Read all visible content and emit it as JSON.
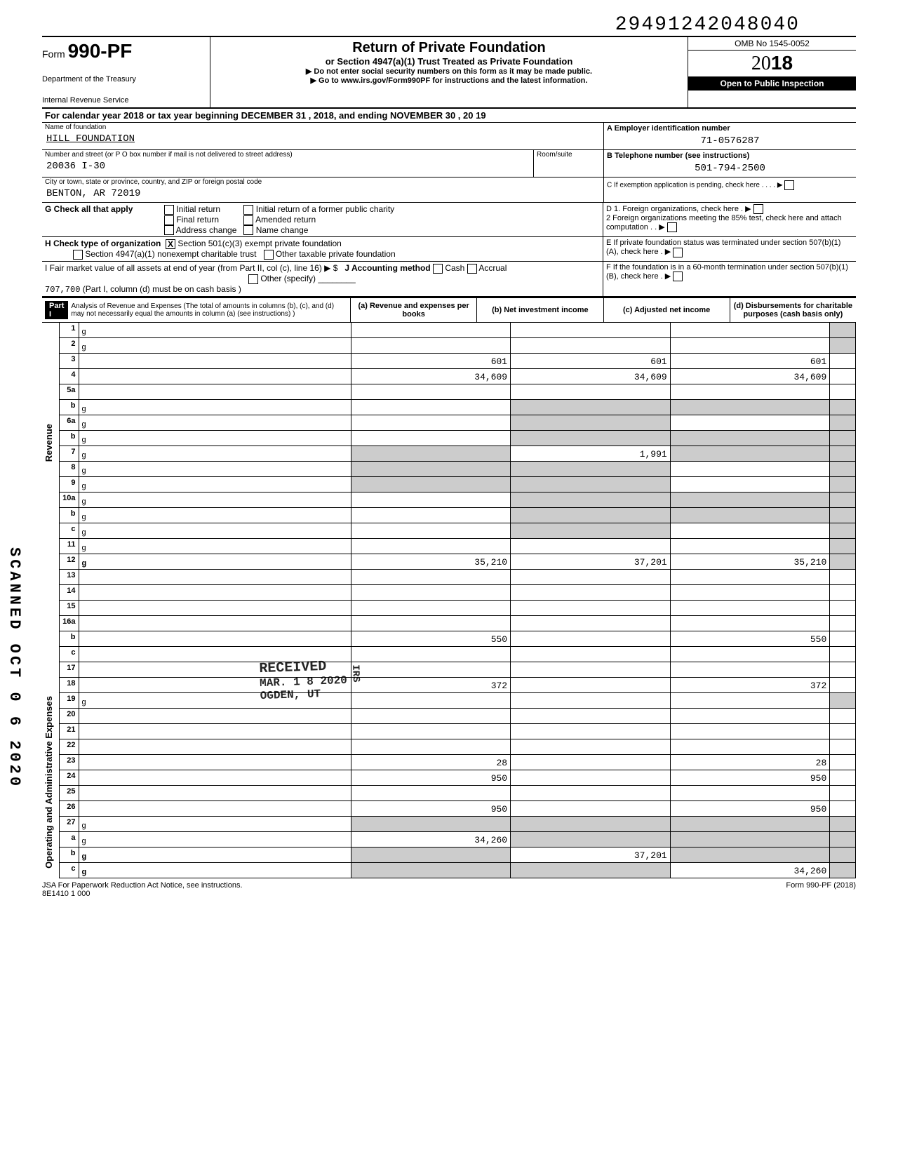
{
  "dln": "29491242048040",
  "form_number_prefix": "Form",
  "form_number": "990-PF",
  "dept1": "Department of the Treasury",
  "dept2": "Internal Revenue Service",
  "title": "Return of Private Foundation",
  "subtitle": "or Section 4947(a)(1) Trust Treated as Private Foundation",
  "warn": "▶ Do not enter social security numbers on this form as it may be made public.",
  "goto": "▶ Go to www.irs.gov/Form990PF for instructions and the latest information.",
  "omb": "OMB No 1545-0052",
  "year_outline": "20",
  "year_bold": "18",
  "inspect": "Open to Public Inspection",
  "cal_line": "For calendar year 2018 or tax year beginning DECEMBER 31          , 2018, and ending   NOVEMBER 30          , 20 19",
  "name_label": "Name of foundation",
  "foundation_name": "HILL FOUNDATION",
  "ein_label": "A  Employer identification number",
  "ein": "71-0576287",
  "street_label": "Number and street (or P O box number if mail is not delivered to street address)",
  "room_label": "Room/suite",
  "street": "20036 I-30",
  "phone_label": "B  Telephone number (see instructions)",
  "phone": "501-794-2500",
  "city_label": "City or town, state or province, country, and ZIP or foreign postal code",
  "city": "BENTON, AR  72019",
  "c_label": "C  If exemption application is pending, check here",
  "g_label": "G  Check all that apply",
  "g_opts": [
    "Initial return",
    "Final return",
    "Address change",
    "Initial return of a former public charity",
    "Amended return",
    "Name change"
  ],
  "d_label": "D  1. Foreign organizations, check here",
  "d2": "2  Foreign organizations meeting the 85% test, check here and attach computation",
  "h_label": "H  Check type of organization",
  "h_x": "X",
  "h_opt1": "Section 501(c)(3) exempt private foundation",
  "h_opt2": "Section 4947(a)(1) nonexempt charitable trust",
  "h_opt3": "Other taxable private foundation",
  "e_label": "E  If private foundation status was terminated under section 507(b)(1)(A), check here",
  "i_label": "I  Fair market value of all assets at end of year (from Part II, col (c), line 16) ▶ $",
  "i_val": "707,700",
  "i_note": "(Part I, column (d) must be on cash basis )",
  "j_label": "J Accounting method",
  "j_opts": [
    "Cash",
    "Accrual",
    "Other (specify)"
  ],
  "f_label": "F  If the foundation is in a 60-month termination under section 507(b)(1)(B), check here",
  "part1_tag": "Part I",
  "part1_title": "Analysis of Revenue and Expenses (The total of amounts in columns (b), (c), and (d) may not necessarily equal the amounts in column (a) (see instructions) )",
  "col_a": "(a) Revenue and expenses per books",
  "col_b": "(b) Net investment income",
  "col_c": "(c) Adjusted net income",
  "col_d": "(d) Disbursements for charitable purposes (cash basis only)",
  "side_rev": "Revenue",
  "side_exp": "Operating and Administrative Expenses",
  "rows": [
    {
      "n": "1",
      "d": "g",
      "a": "",
      "b": "",
      "c": ""
    },
    {
      "n": "2",
      "d": "g",
      "a": "",
      "b": "",
      "c": ""
    },
    {
      "n": "3",
      "d": "",
      "a": "601",
      "b": "601",
      "c": "601"
    },
    {
      "n": "4",
      "d": "",
      "a": "34,609",
      "b": "34,609",
      "c": "34,609"
    },
    {
      "n": "5a",
      "d": "",
      "a": "",
      "b": "",
      "c": ""
    },
    {
      "n": "b",
      "d": "g",
      "a": "",
      "b": "g",
      "c": "g"
    },
    {
      "n": "6a",
      "d": "g",
      "a": "",
      "b": "g",
      "c": ""
    },
    {
      "n": "b",
      "d": "g",
      "a": "",
      "b": "g",
      "c": "g"
    },
    {
      "n": "7",
      "d": "g",
      "a": "g",
      "b": "1,991",
      "c": "g"
    },
    {
      "n": "8",
      "d": "g",
      "a": "g",
      "b": "g",
      "c": ""
    },
    {
      "n": "9",
      "d": "g",
      "a": "g",
      "b": "g",
      "c": ""
    },
    {
      "n": "10a",
      "d": "g",
      "a": "",
      "b": "g",
      "c": "g"
    },
    {
      "n": "b",
      "d": "g",
      "a": "",
      "b": "g",
      "c": "g"
    },
    {
      "n": "c",
      "d": "g",
      "a": "",
      "b": "g",
      "c": ""
    },
    {
      "n": "11",
      "d": "g",
      "a": "",
      "b": "",
      "c": ""
    },
    {
      "n": "12",
      "d": "g",
      "a": "35,210",
      "b": "37,201",
      "c": "35,210",
      "bold": true
    }
  ],
  "rows2": [
    {
      "n": "13",
      "d": "",
      "a": "",
      "b": "",
      "c": ""
    },
    {
      "n": "14",
      "d": "",
      "a": "",
      "b": "",
      "c": ""
    },
    {
      "n": "15",
      "d": "",
      "a": "",
      "b": "",
      "c": ""
    },
    {
      "n": "16a",
      "d": "",
      "a": "",
      "b": "",
      "c": ""
    },
    {
      "n": "b",
      "d": "",
      "a": "550",
      "b": "",
      "c": "550"
    },
    {
      "n": "c",
      "d": "",
      "a": "",
      "b": "",
      "c": ""
    },
    {
      "n": "17",
      "d": "",
      "a": "",
      "b": "",
      "c": ""
    },
    {
      "n": "18",
      "d": "",
      "a": "372",
      "b": "",
      "c": "372"
    },
    {
      "n": "19",
      "d": "g",
      "a": "",
      "b": "",
      "c": ""
    },
    {
      "n": "20",
      "d": "",
      "a": "",
      "b": "",
      "c": ""
    },
    {
      "n": "21",
      "d": "",
      "a": "",
      "b": "",
      "c": ""
    },
    {
      "n": "22",
      "d": "",
      "a": "",
      "b": "",
      "c": ""
    },
    {
      "n": "23",
      "d": "",
      "a": "28",
      "b": "",
      "c": "28"
    },
    {
      "n": "24",
      "d": "",
      "a": "950",
      "b": "",
      "c": "950",
      "bold": true
    },
    {
      "n": "25",
      "d": "",
      "a": "",
      "b": "",
      "c": ""
    },
    {
      "n": "26",
      "d": "",
      "a": "950",
      "b": "",
      "c": "950",
      "bold": true
    },
    {
      "n": "27",
      "d": "g",
      "a": "g",
      "b": "g",
      "c": "g"
    },
    {
      "n": "a",
      "d": "g",
      "a": "34,260",
      "b": "g",
      "c": "g"
    },
    {
      "n": "b",
      "d": "g",
      "a": "g",
      "b": "37,201",
      "c": "g",
      "bold": true
    },
    {
      "n": "c",
      "d": "g",
      "a": "g",
      "b": "g",
      "c": "34,260",
      "bold": true
    }
  ],
  "foot_left": "JSA For Paperwork Reduction Act Notice, see instructions.",
  "foot_left2": "8E1410 1 000",
  "foot_right": "Form 990-PF (2018)",
  "stamp_scanned": "SCANNED OCT 0 6 2020",
  "stamp_received_l1": "RECEIVED",
  "stamp_received_l2": "MAR. 1 8 2020",
  "stamp_received_l3": "OGDEN, UT",
  "stamp_irs": "IRS"
}
